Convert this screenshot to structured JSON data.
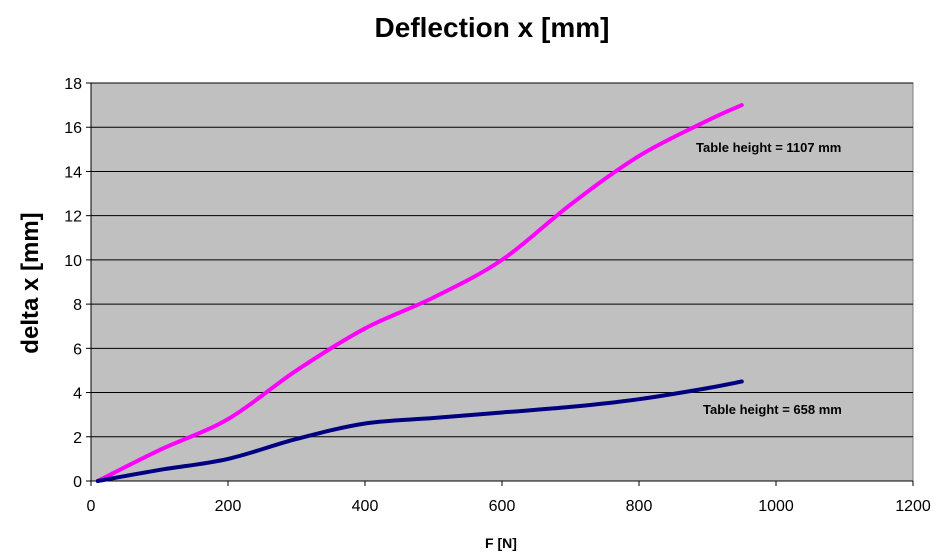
{
  "chart_data": {
    "type": "line",
    "title": "Deflection x [mm]",
    "xlabel": "F [N]",
    "ylabel": "delta x [mm]",
    "xlim": [
      0,
      1200
    ],
    "ylim": [
      0,
      18
    ],
    "xticks": [
      0,
      200,
      400,
      600,
      800,
      1000,
      1200
    ],
    "yticks": [
      0,
      2,
      4,
      6,
      8,
      10,
      12,
      14,
      16,
      18
    ],
    "grid": true,
    "plot_background": "#c0c0c0",
    "series": [
      {
        "name": "Table height = 1107 mm",
        "color": "#ff00ff",
        "x": [
          10,
          100,
          200,
          300,
          400,
          500,
          600,
          700,
          800,
          900,
          950
        ],
        "y": [
          0,
          1.4,
          2.8,
          5.0,
          6.9,
          8.3,
          10.0,
          12.5,
          14.7,
          16.3,
          17.0
        ]
      },
      {
        "name": "Table height = 658 mm",
        "color": "#000080",
        "x": [
          10,
          100,
          200,
          300,
          400,
          500,
          600,
          700,
          800,
          900,
          950
        ],
        "y": [
          0,
          0.5,
          1.0,
          1.9,
          2.6,
          2.85,
          3.1,
          3.35,
          3.7,
          4.2,
          4.5
        ]
      }
    ]
  }
}
